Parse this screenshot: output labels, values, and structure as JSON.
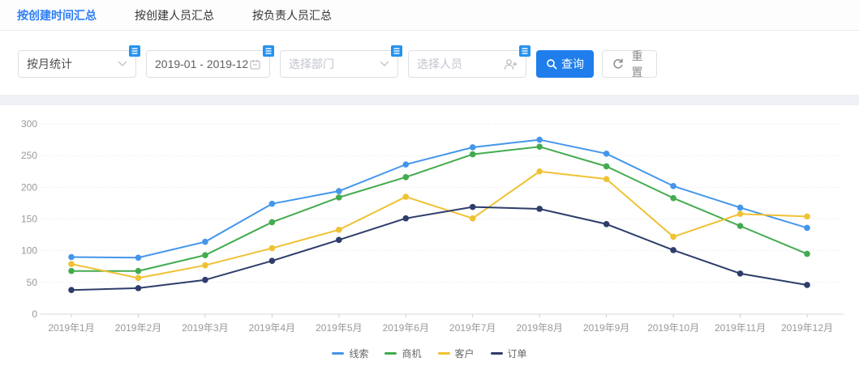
{
  "tabs": [
    {
      "label": "按创建时间汇总"
    },
    {
      "label": "按创建人员汇总"
    },
    {
      "label": "按负责人员汇总"
    }
  ],
  "active_tab": 0,
  "filters": {
    "stat_mode": {
      "value": "按月统计"
    },
    "date_range": {
      "value": "2019-01 - 2019-12"
    },
    "department": {
      "placeholder": "选择部门"
    },
    "person": {
      "placeholder": "选择人员"
    },
    "search_label": "查询",
    "reset_label": "重置"
  },
  "colors": {
    "primary_button": "#1f7eeb",
    "config_badge": "#2592f0",
    "active_tab": "#2d7ef7",
    "separator": "#eef0f5",
    "axis_label": "#999999",
    "gridline": "#e2e2e2",
    "axis_line": "#d9d9d9"
  },
  "chart_data": {
    "type": "line",
    "x": [
      "2019年1月",
      "2019年2月",
      "2019年3月",
      "2019年4月",
      "2019年5月",
      "2019年6月",
      "2019年7月",
      "2019年8月",
      "2019年9月",
      "2019年10月",
      "2019年11月",
      "2019年12月"
    ],
    "yticks": [
      0,
      50,
      100,
      150,
      200,
      250,
      300
    ],
    "ylim": [
      0,
      300
    ],
    "grid": "dotted-horizontal",
    "legend_position": "bottom",
    "series": [
      {
        "name": "线索",
        "color": "#4496EB",
        "values": [
          90,
          89,
          114,
          174,
          194,
          236,
          263,
          275,
          253,
          202,
          168,
          136
        ]
      },
      {
        "name": "商机",
        "color": "#43AB4F",
        "values": [
          68,
          68,
          93,
          145,
          184,
          216,
          252,
          264,
          233,
          183,
          139,
          95
        ]
      },
      {
        "name": "客户",
        "color": "#EFC234",
        "values": [
          79,
          57,
          77,
          104,
          133,
          185,
          151,
          225,
          213,
          122,
          158,
          154
        ]
      },
      {
        "name": "订单",
        "color": "#2E3D6B",
        "values": [
          38,
          41,
          54,
          84,
          117,
          151,
          169,
          166,
          142,
          101,
          64,
          46
        ]
      }
    ]
  }
}
